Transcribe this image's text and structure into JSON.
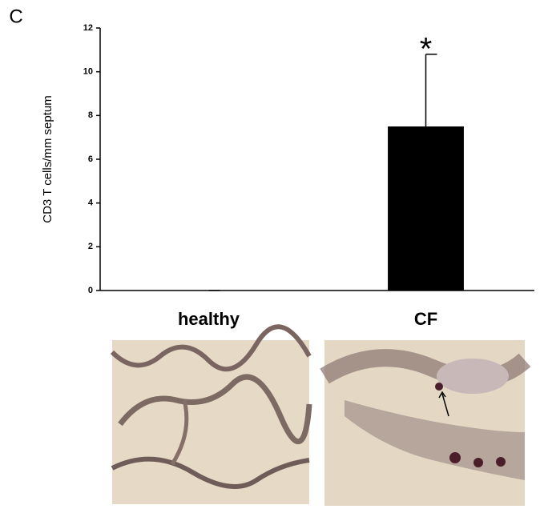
{
  "chart_data": {
    "type": "bar",
    "panel_label": "C",
    "ylabel": "CD3 T cells/mm septum",
    "categories": [
      "healthy",
      "CF"
    ],
    "values": [
      0,
      7.5
    ],
    "errors": [
      0,
      3.3
    ],
    "color": "#000000",
    "annotation": "*",
    "ylim": [
      0,
      12
    ],
    "yticks": [
      0,
      2,
      4,
      6,
      8,
      10,
      12
    ],
    "grid": false
  }
}
